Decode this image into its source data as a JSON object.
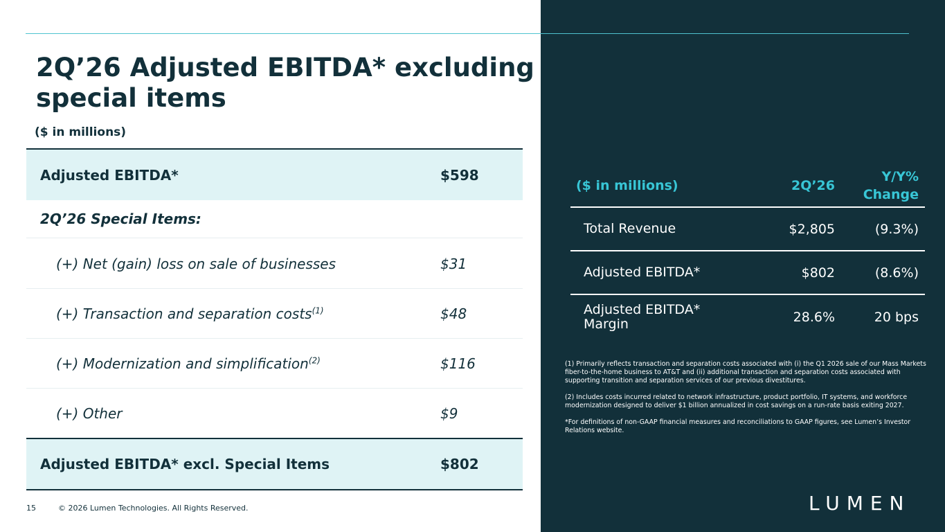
{
  "header": {
    "title": "2Q’26 Adjusted EBITDA* excluding special items",
    "subtitle": "($ in millions)"
  },
  "left_table": {
    "rows": [
      {
        "label": "Adjusted EBITDA*",
        "value": "$598",
        "style": "highlight"
      },
      {
        "label": "2Q’26 Special Items:",
        "value": null,
        "style": "section"
      },
      {
        "label": "(+) Net (gain) loss on sale of businesses",
        "value": "$31",
        "style": "item"
      },
      {
        "label": "(+) Transaction and separation costs",
        "note": "(1)",
        "value": "$48",
        "style": "item"
      },
      {
        "label": "(+) Modernization and simplification",
        "note": "(2)",
        "value": "$116",
        "style": "item"
      },
      {
        "label": "(+) Other",
        "value": "$9",
        "style": "item"
      },
      {
        "label": "Adjusted EBITDA* excl. Special Items",
        "value": "$802",
        "style": "highlight"
      }
    ]
  },
  "right_table": {
    "header": [
      "($ in millions)",
      "2Q’26",
      "Y/Y% Change"
    ],
    "rows": [
      [
        "Total Revenue",
        "$2,805",
        "(9.3%)"
      ],
      [
        "Adjusted EBITDA*",
        "$802",
        "(8.6%)"
      ],
      [
        "Adjusted EBITDA* Margin",
        "28.6%",
        "20 bps"
      ]
    ]
  },
  "footnotes": [
    "(1) Primarily reflects transaction and separation costs associated with (i) the Q1 2026 sale of our Mass Markets fiber-to-the-home business to AT&T and (ii) additional transaction and separation costs associated with supporting transition and separation services of our previous divestitures.",
    "(2) Includes costs incurred related to network infrastructure, product portfolio, IT systems, and workforce modernization designed to deliver $1 billion annualized in cost savings on a run-rate basis exiting 2027.",
    "*For definitions of non-GAAP financial measures and reconciliations to GAAP figures, see Lumen’s Investor Relations website."
  ],
  "footer": {
    "page": "15",
    "copyright": "© 2026 Lumen Technologies. All Rights Reserved.",
    "logo": "LUMEN"
  }
}
